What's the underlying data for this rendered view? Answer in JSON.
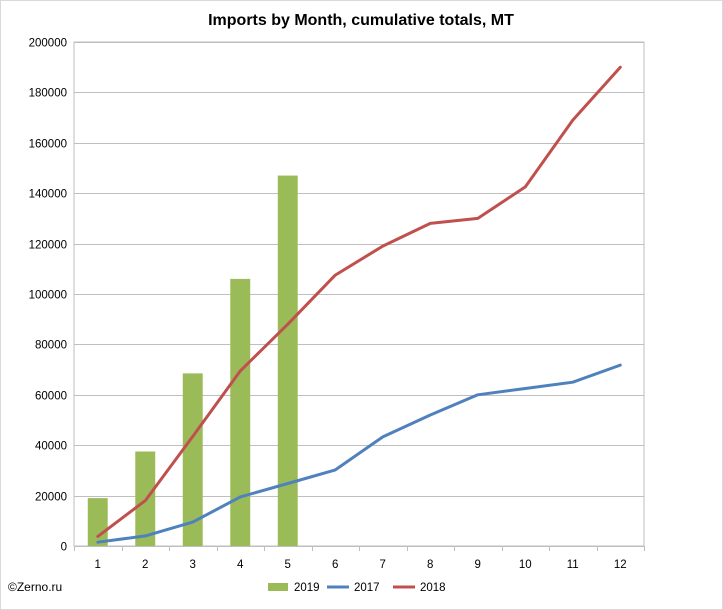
{
  "chart_data": {
    "type": "bar+line",
    "title": "Imports by Month, cumulative totals, MT",
    "xlabel": "",
    "ylabel": "",
    "categories": [
      "1",
      "2",
      "3",
      "4",
      "5",
      "6",
      "7",
      "8",
      "9",
      "10",
      "11",
      "12"
    ],
    "ylim": [
      0,
      200000
    ],
    "yticks": [
      0,
      20000,
      40000,
      60000,
      80000,
      100000,
      120000,
      140000,
      160000,
      180000,
      200000
    ],
    "grid": true,
    "legend_position": "bottom",
    "series": [
      {
        "name": "2019",
        "type": "bar",
        "color": "#9bbb59",
        "values": [
          19000,
          37500,
          68500,
          106000,
          147000,
          null,
          null,
          null,
          null,
          null,
          null,
          null
        ]
      },
      {
        "name": "2017",
        "type": "line",
        "color": "#4f81bd",
        "values": [
          1500,
          4000,
          9500,
          19500,
          24800,
          30200,
          43300,
          52000,
          60000,
          62500,
          65000,
          71800
        ]
      },
      {
        "name": "2018",
        "type": "line",
        "color": "#c0504d",
        "values": [
          3800,
          18000,
          43500,
          69500,
          88000,
          107500,
          119000,
          128000,
          130000,
          142500,
          169000,
          190000
        ]
      }
    ]
  },
  "credit": "©Zerno.ru"
}
